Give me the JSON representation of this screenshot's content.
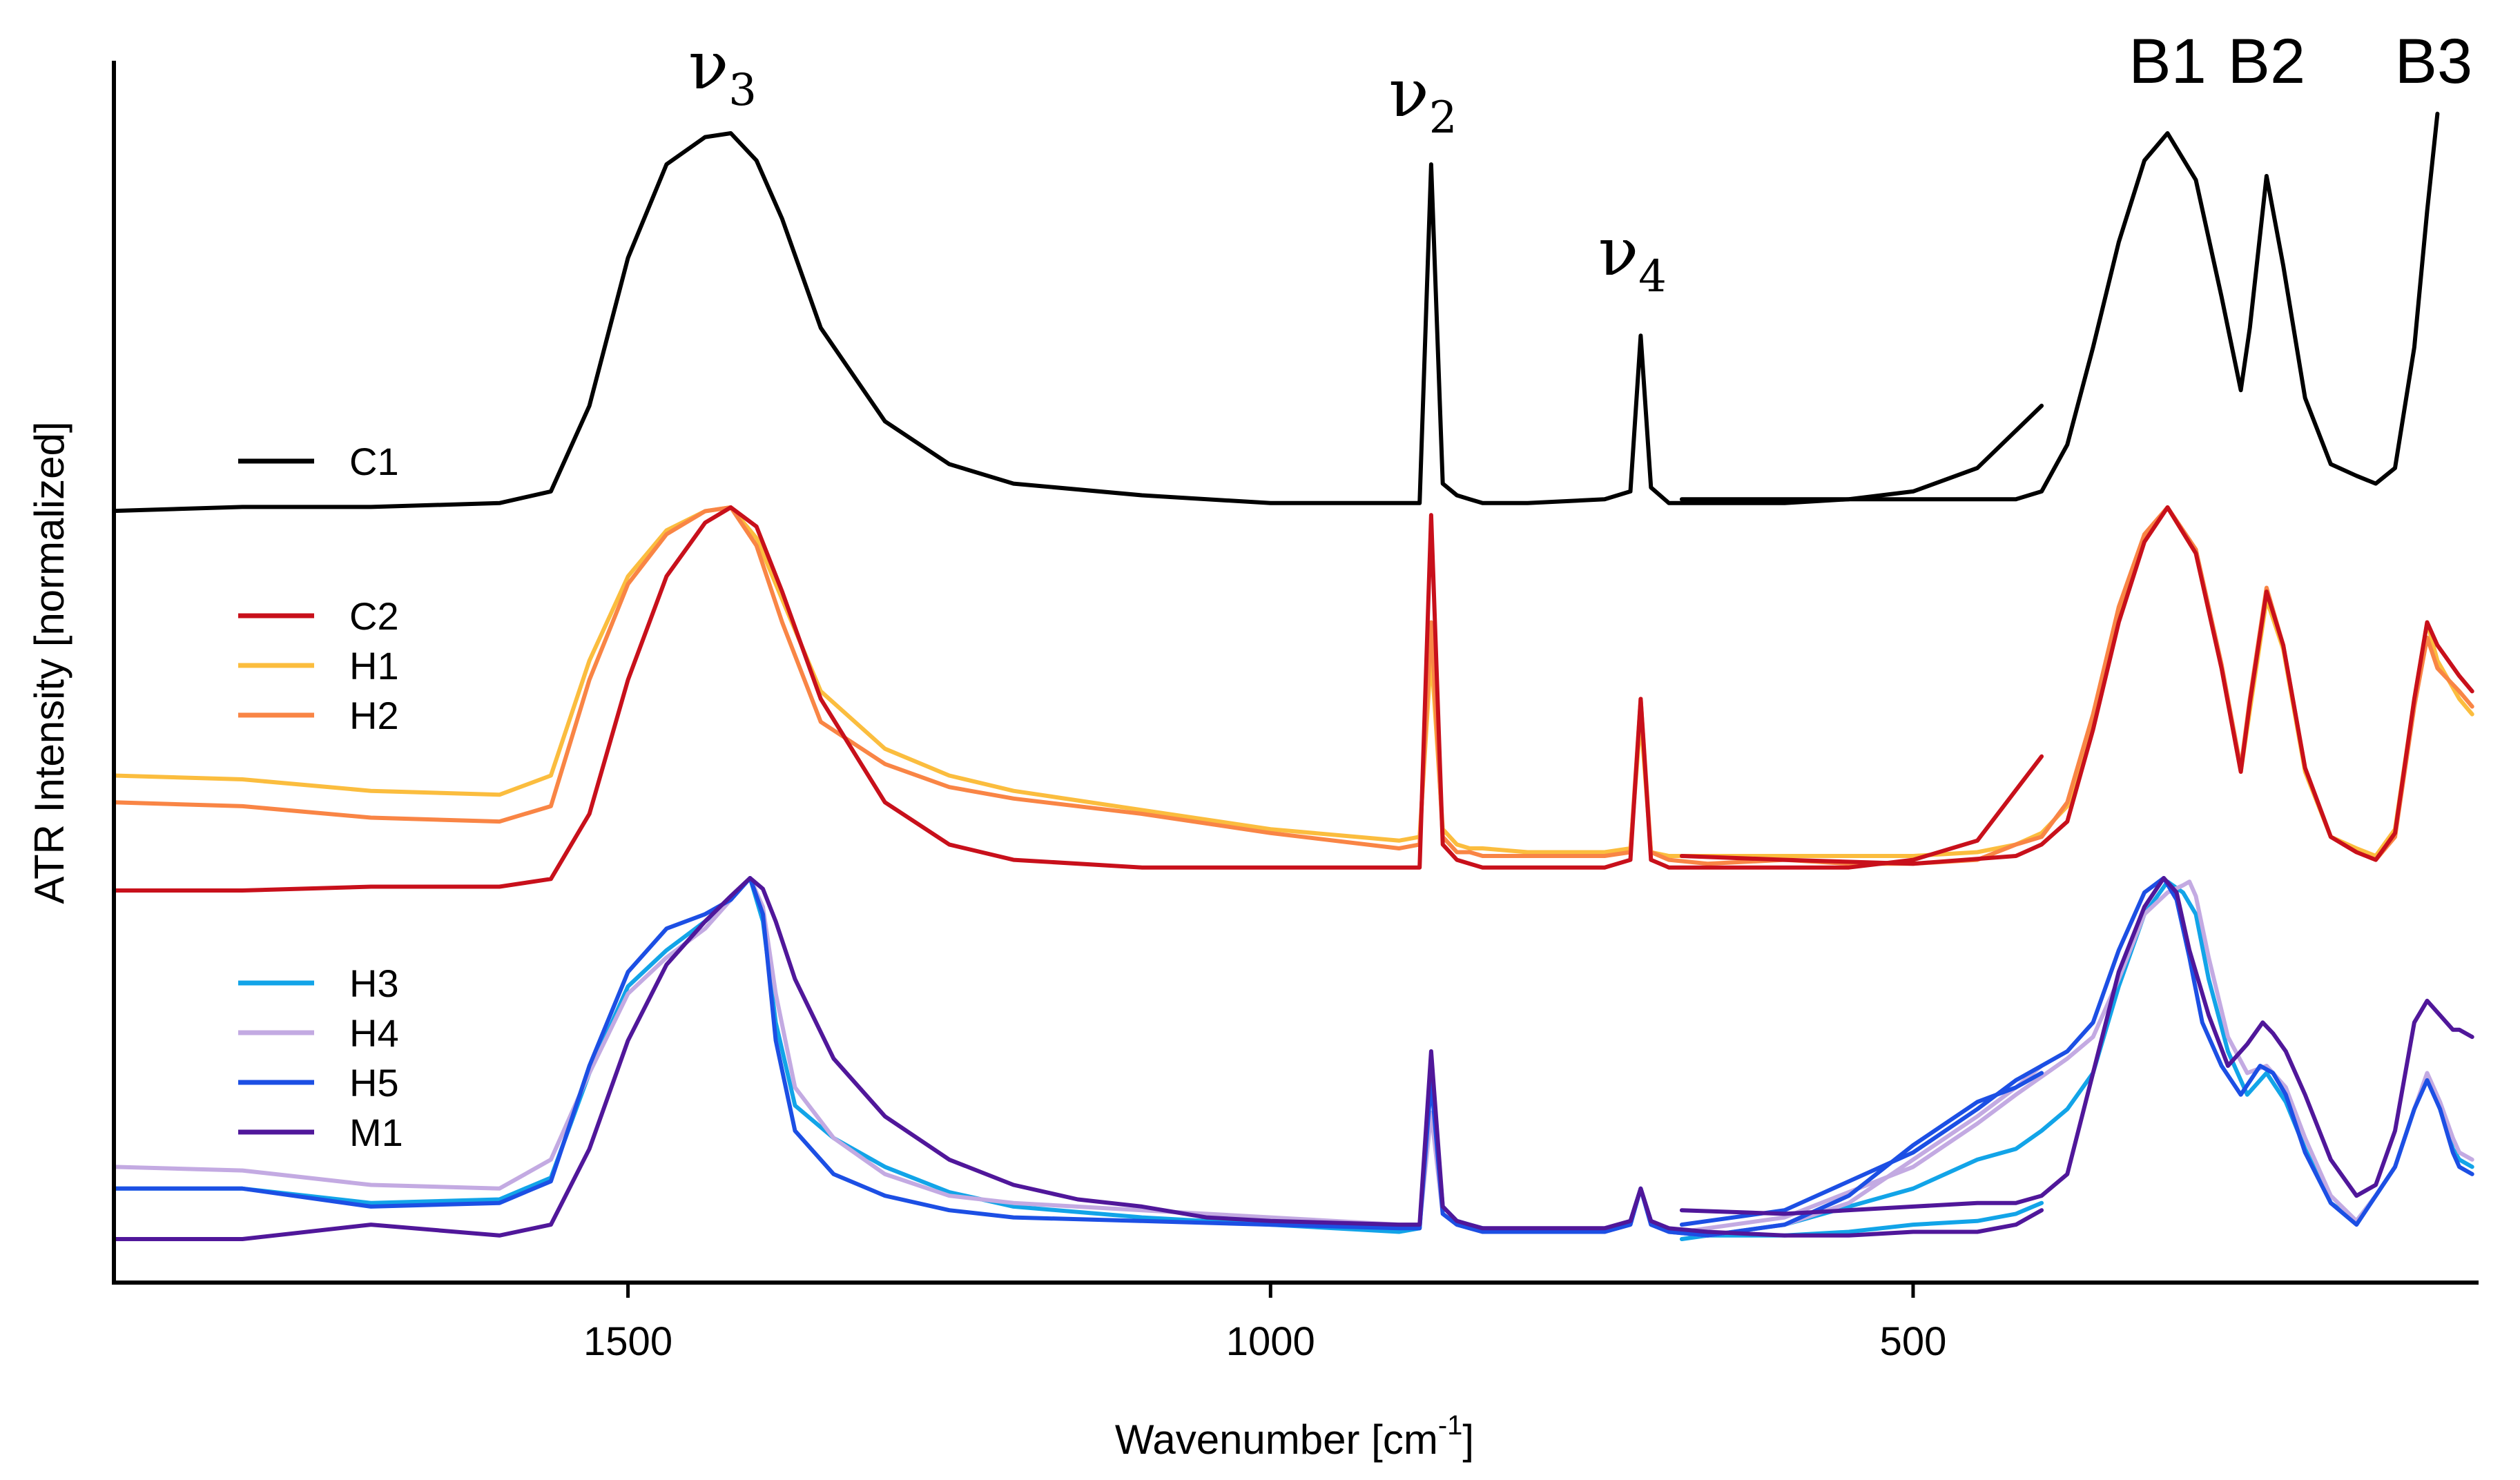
{
  "chart_data": {
    "type": "line",
    "xlabel": "Wavenumber [cm",
    "xlabel_sup": "-1",
    "xlabel_end": "]",
    "ylabel": "ATR Intensity [normalized]",
    "xlim": [
      1900,
      60
    ],
    "x_reversed": true,
    "xticks": [
      1500,
      1000,
      500
    ],
    "xtick_labels": [
      "1500",
      "1000",
      "500"
    ],
    "yticks_shown": false,
    "grid": false,
    "legend": "left, grouped by panel",
    "peak_labels": [
      {
        "id": "nu3",
        "base": "ν",
        "sub": "3",
        "x": 1420
      },
      {
        "id": "nu2",
        "base": "ν",
        "sub": "2",
        "x": 875
      },
      {
        "id": "nu4",
        "base": "ν",
        "sub": "4",
        "x": 712
      },
      {
        "id": "B1",
        "text": "B1",
        "x": 302
      },
      {
        "id": "B2",
        "text": "B2",
        "x": 225
      },
      {
        "id": "B3",
        "text": "B3",
        "x": 95
      }
    ],
    "series": [
      {
        "name": "C1",
        "color": "#000000",
        "group": 1,
        "x": [
          1900,
          1800,
          1700,
          1600,
          1560,
          1530,
          1500,
          1470,
          1440,
          1420,
          1400,
          1380,
          1350,
          1300,
          1250,
          1200,
          1100,
          1000,
          900,
          884,
          875,
          866,
          855,
          845,
          835,
          800,
          740,
          720,
          712,
          704,
          690,
          660,
          600,
          550,
          500,
          450,
          400
        ],
        "y": [
          3,
          4,
          4,
          5,
          8,
          30,
          68,
          92,
          99,
          100,
          93,
          78,
          50,
          26,
          15,
          10,
          7,
          5,
          5,
          5,
          92,
          10,
          7,
          6,
          5,
          5,
          6,
          8,
          48,
          9,
          5,
          5,
          5,
          6,
          8,
          14,
          30
        ]
      },
      {
        "name": "C1",
        "color": "#000000",
        "group": 1,
        "x": [
          680,
          600,
          500,
          420,
          400,
          380,
          360,
          340,
          320,
          302,
          280,
          260,
          245,
          238,
          225,
          212,
          195,
          175,
          155,
          140,
          125,
          110,
          100,
          92
        ],
        "y": [
          6,
          6,
          6,
          6,
          8,
          20,
          45,
          72,
          93,
          100,
          88,
          58,
          34,
          50,
          89,
          66,
          32,
          15,
          12,
          10,
          14,
          45,
          80,
          105
        ]
      },
      {
        "name": "H1",
        "color": "#fbbd3e",
        "group": 2,
        "x": [
          1900,
          1800,
          1700,
          1600,
          1560,
          1530,
          1500,
          1470,
          1440,
          1420,
          1400,
          1380,
          1350,
          1300,
          1250,
          1200,
          1100,
          1000,
          900,
          884,
          875,
          866,
          855,
          845,
          835,
          800,
          740,
          720,
          712,
          704,
          690,
          660,
          600,
          550,
          500,
          450,
          420,
          400,
          380,
          360,
          340,
          320,
          302,
          280,
          260,
          245,
          238,
          225,
          212,
          195,
          175,
          155,
          140,
          125,
          110,
          100,
          92,
          75,
          65
        ],
        "y": [
          30,
          29,
          26,
          25,
          30,
          60,
          82,
          94,
          99,
          100,
          92,
          76,
          52,
          37,
          30,
          26,
          21,
          16,
          13,
          14,
          62,
          16,
          12,
          11,
          11,
          10,
          10,
          11,
          45,
          10,
          9,
          9,
          9,
          9,
          9,
          10,
          12,
          15,
          22,
          44,
          72,
          92,
          100,
          88,
          58,
          31,
          47,
          76,
          63,
          31,
          14,
          11,
          9,
          16,
          50,
          70,
          60,
          50,
          46
        ]
      },
      {
        "name": "H2",
        "color": "#f98545",
        "group": 2,
        "x": [
          1900,
          1800,
          1700,
          1600,
          1560,
          1530,
          1500,
          1470,
          1440,
          1420,
          1400,
          1380,
          1350,
          1300,
          1250,
          1200,
          1100,
          1000,
          900,
          884,
          875,
          866,
          855,
          845,
          835,
          800,
          740,
          720,
          712,
          704,
          690,
          660,
          600,
          550,
          500,
          450,
          420,
          400,
          380,
          360,
          340,
          320,
          302,
          280,
          260,
          245,
          238,
          225,
          212,
          195,
          175,
          155,
          140,
          125,
          110,
          100,
          92,
          75,
          65
        ],
        "y": [
          23,
          22,
          19,
          18,
          22,
          55,
          80,
          93,
          99,
          100,
          90,
          70,
          44,
          33,
          27,
          24,
          20,
          15,
          11,
          12,
          70,
          14,
          10,
          10,
          9,
          9,
          9,
          10,
          50,
          10,
          8,
          7,
          8,
          7,
          7,
          8,
          12,
          14,
          23,
          46,
          74,
          93,
          100,
          89,
          59,
          32,
          50,
          79,
          64,
          32,
          14,
          10,
          8,
          14,
          48,
          66,
          58,
          52,
          48
        ]
      },
      {
        "name": "C2",
        "color": "#c8101b",
        "group": 2,
        "x": [
          1900,
          1800,
          1700,
          1600,
          1560,
          1530,
          1500,
          1470,
          1440,
          1420,
          1400,
          1380,
          1350,
          1300,
          1250,
          1200,
          1100,
          1000,
          900,
          884,
          875,
          866,
          855,
          845,
          835,
          800,
          740,
          720,
          712,
          704,
          690,
          660,
          600,
          550,
          500,
          450,
          400
        ],
        "y": [
          0,
          0,
          1,
          1,
          3,
          20,
          55,
          82,
          96,
          100,
          95,
          78,
          50,
          23,
          12,
          8,
          6,
          6,
          6,
          6,
          98,
          12,
          8,
          7,
          6,
          6,
          6,
          8,
          50,
          8,
          6,
          6,
          6,
          6,
          8,
          13,
          35
        ]
      },
      {
        "name": "C2",
        "color": "#c8101b",
        "group": 2,
        "x": [
          680,
          600,
          500,
          420,
          400,
          380,
          360,
          340,
          320,
          302,
          280,
          260,
          245,
          238,
          225,
          212,
          195,
          175,
          155,
          140,
          125,
          110,
          100,
          92,
          75,
          65
        ],
        "y": [
          9,
          8,
          7,
          9,
          12,
          18,
          42,
          70,
          91,
          100,
          88,
          58,
          31,
          49,
          78,
          64,
          32,
          14,
          10,
          8,
          15,
          50,
          70,
          64,
          56,
          52
        ]
      },
      {
        "name": "H3",
        "color": "#12a4e8",
        "group": 3,
        "x": [
          1900,
          1800,
          1700,
          1600,
          1560,
          1530,
          1500,
          1470,
          1440,
          1420,
          1405,
          1395,
          1385,
          1370,
          1340,
          1300,
          1250,
          1200,
          1100,
          1000,
          900,
          884,
          875,
          866,
          855,
          845,
          835,
          800,
          740,
          720,
          712,
          704,
          690,
          660,
          600,
          550,
          500,
          450,
          420,
          400
        ],
        "y": [
          14,
          14,
          10,
          11,
          17,
          46,
          70,
          80,
          88,
          94,
          100,
          88,
          60,
          37,
          28,
          20,
          13,
          9,
          6,
          4,
          2,
          3,
          47,
          9,
          5,
          4,
          3,
          2,
          2,
          5,
          14,
          5,
          2,
          1,
          1,
          2,
          4,
          5,
          7,
          10
        ]
      },
      {
        "name": "H3",
        "color": "#12a4e8",
        "group": 3,
        "x": [
          680,
          600,
          500,
          450,
          420,
          400,
          380,
          360,
          340,
          320,
          302,
          290,
          280,
          270,
          255,
          240,
          225,
          210,
          195,
          175,
          155,
          140,
          125,
          110,
          100,
          90,
          80,
          75,
          65
        ],
        "y": [
          0,
          4,
          14,
          22,
          25,
          30,
          36,
          46,
          70,
          90,
          99,
          96,
          90,
          72,
          52,
          40,
          46,
          38,
          25,
          10,
          5,
          12,
          20,
          36,
          45,
          36,
          25,
          22,
          20
        ]
      },
      {
        "name": "H4",
        "color": "#c3aae2",
        "group": 3,
        "x": [
          1900,
          1800,
          1700,
          1600,
          1560,
          1530,
          1500,
          1470,
          1440,
          1420,
          1405,
          1395,
          1385,
          1370,
          1340,
          1300,
          1250,
          1200,
          1100,
          1000,
          900,
          884,
          875,
          866,
          855,
          845,
          835,
          800,
          740,
          720,
          712,
          704,
          690,
          660,
          600,
          550,
          500,
          450,
          420,
          400
        ],
        "y": [
          20,
          19,
          15,
          14,
          22,
          46,
          68,
          78,
          86,
          94,
          100,
          92,
          68,
          42,
          28,
          18,
          12,
          10,
          8,
          6,
          4,
          4,
          35,
          7,
          4,
          3,
          2,
          2,
          2,
          4,
          14,
          4,
          2,
          1,
          4,
          10,
          22,
          34,
          42,
          48
        ]
      },
      {
        "name": "H4",
        "color": "#c3aae2",
        "group": 3,
        "x": [
          680,
          600,
          500,
          450,
          420,
          400,
          380,
          360,
          340,
          320,
          302,
          290,
          285,
          280,
          270,
          255,
          240,
          225,
          210,
          195,
          175,
          155,
          140,
          125,
          110,
          100,
          90,
          80,
          75,
          65
        ],
        "y": [
          2,
          6,
          20,
          32,
          40,
          45,
          50,
          56,
          72,
          90,
          96,
          98,
          99,
          95,
          78,
          56,
          46,
          48,
          42,
          28,
          12,
          5,
          12,
          20,
          36,
          46,
          38,
          28,
          24,
          22
        ]
      },
      {
        "name": "H5",
        "color": "#1c4fe4",
        "group": 3,
        "x": [
          1900,
          1800,
          1700,
          1600,
          1560,
          1530,
          1500,
          1470,
          1440,
          1420,
          1405,
          1395,
          1385,
          1370,
          1340,
          1300,
          1250,
          1200,
          1100,
          1000,
          900,
          884,
          875,
          866,
          855,
          845,
          835,
          800,
          740,
          720,
          712,
          704,
          690,
          660,
          600,
          550,
          500,
          450,
          420,
          400
        ],
        "y": [
          14,
          14,
          9,
          10,
          16,
          48,
          74,
          86,
          90,
          94,
          100,
          90,
          55,
          30,
          18,
          12,
          8,
          6,
          5,
          4,
          3,
          3,
          44,
          7,
          4,
          3,
          2,
          2,
          2,
          4,
          14,
          4,
          2,
          1,
          4,
          12,
          26,
          38,
          42,
          46
        ]
      },
      {
        "name": "H5",
        "color": "#1c4fe4",
        "group": 3,
        "x": [
          680,
          600,
          500,
          450,
          420,
          400,
          380,
          360,
          340,
          320,
          305,
          295,
          285,
          275,
          260,
          245,
          230,
          220,
          210,
          195,
          175,
          155,
          140,
          125,
          110,
          100,
          90,
          80,
          75,
          65
        ],
        "y": [
          4,
          8,
          24,
          36,
          44,
          48,
          52,
          60,
          80,
          96,
          100,
          94,
          78,
          60,
          48,
          40,
          48,
          46,
          40,
          24,
          10,
          4,
          12,
          20,
          36,
          44,
          36,
          24,
          20,
          18
        ]
      },
      {
        "name": "M1",
        "color": "#50179a",
        "group": 3,
        "x": [
          1900,
          1800,
          1700,
          1600,
          1560,
          1530,
          1500,
          1470,
          1440,
          1420,
          1405,
          1395,
          1385,
          1370,
          1340,
          1300,
          1250,
          1200,
          1150,
          1100,
          1050,
          1000,
          900,
          884,
          875,
          866,
          855,
          845,
          835,
          800,
          740,
          720,
          712,
          704,
          690,
          660,
          600,
          550,
          500,
          450,
          420,
          400
        ],
        "y": [
          0,
          0,
          4,
          1,
          4,
          25,
          55,
          76,
          88,
          95,
          100,
          97,
          88,
          72,
          50,
          34,
          22,
          15,
          11,
          9,
          6,
          5,
          4,
          4,
          52,
          9,
          5,
          4,
          3,
          3,
          3,
          5,
          14,
          5,
          3,
          2,
          1,
          1,
          2,
          2,
          4,
          8
        ]
      },
      {
        "name": "M1",
        "color": "#50179a",
        "group": 3,
        "x": [
          680,
          600,
          500,
          450,
          420,
          400,
          380,
          360,
          340,
          320,
          305,
          295,
          285,
          270,
          255,
          240,
          228,
          220,
          210,
          195,
          175,
          155,
          140,
          125,
          110,
          100,
          90,
          80,
          75,
          65
        ],
        "y": [
          8,
          7,
          9,
          10,
          10,
          12,
          18,
          46,
          74,
          92,
          100,
          96,
          80,
          62,
          48,
          54,
          60,
          57,
          52,
          40,
          22,
          12,
          15,
          30,
          60,
          66,
          62,
          58,
          58,
          56
        ]
      }
    ],
    "legend_groups": [
      {
        "group": 1,
        "entries": [
          {
            "name": "C1",
            "color": "#000000"
          }
        ]
      },
      {
        "group": 2,
        "entries": [
          {
            "name": "C2",
            "color": "#c8101b"
          },
          {
            "name": "H1",
            "color": "#fbbd3e"
          },
          {
            "name": "H2",
            "color": "#f98545"
          }
        ]
      },
      {
        "group": 3,
        "entries": [
          {
            "name": "H3",
            "color": "#12a4e8"
          },
          {
            "name": "H4",
            "color": "#c3aae2"
          },
          {
            "name": "H5",
            "color": "#1c4fe4"
          },
          {
            "name": "M1",
            "color": "#50179a"
          }
        ]
      }
    ]
  }
}
